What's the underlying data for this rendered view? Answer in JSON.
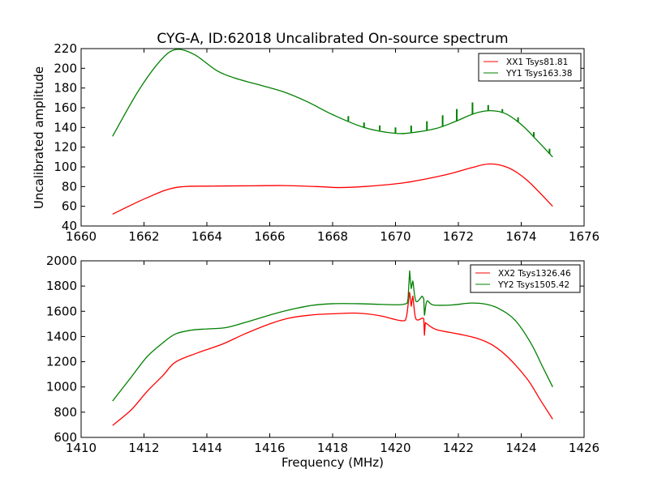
{
  "chart_data": [
    {
      "type": "line",
      "title": "CYG-A, ID:62018 Uncalibrated On-source spectrum",
      "xlabel": "",
      "ylabel": "Uncalibrated amplitude",
      "xlim": [
        1660,
        1676
      ],
      "ylim": [
        40,
        220
      ],
      "xticks": [
        "1660",
        "1662",
        "1664",
        "1666",
        "1668",
        "1670",
        "1672",
        "1674",
        "1676"
      ],
      "yticks": [
        "40",
        "60",
        "80",
        "100",
        "120",
        "140",
        "160",
        "180",
        "200",
        "220"
      ],
      "grid": false,
      "legend_position": "top-right",
      "series": [
        {
          "name": "XX1 Tsys81.81",
          "color": "#ff0000",
          "x": [
            1661.0,
            1662.05,
            1663.0,
            1664.2,
            1665.5,
            1666.45,
            1667.5,
            1668.2,
            1669.0,
            1670.3,
            1671.6,
            1672.4,
            1673.0,
            1673.6,
            1674.2,
            1675.0
          ],
          "y": [
            52,
            68,
            79,
            80.5,
            80.8,
            81,
            80,
            79,
            80,
            84,
            92,
            99,
            103,
            99,
            86,
            60
          ]
        },
        {
          "name": "YY1 Tsys163.38",
          "color": "#008000",
          "x": [
            1661.0,
            1661.8,
            1662.5,
            1663.0,
            1663.6,
            1664.3,
            1664.9,
            1665.8,
            1666.45,
            1667.2,
            1668.0,
            1669.0,
            1670.0,
            1670.6,
            1671.3,
            1671.9,
            1672.5,
            1673.0,
            1673.5,
            1674.0,
            1674.5,
            1675.0
          ],
          "y": [
            131,
            176,
            207,
            219,
            214,
            198,
            190,
            182,
            176,
            166,
            153,
            140,
            134,
            135,
            139,
            146,
            154,
            157,
            154,
            143,
            127,
            110
          ],
          "spikes_x": [
            1668.5,
            1669.0,
            1669.5,
            1670.0,
            1670.5,
            1671.0,
            1671.5,
            1671.95,
            1672.45,
            1672.95,
            1673.4,
            1673.9,
            1674.4,
            1674.9
          ],
          "spikes_height": [
            5,
            5,
            5,
            6,
            7,
            9,
            11,
            12,
            12,
            6,
            4,
            5,
            5,
            5
          ]
        }
      ]
    },
    {
      "type": "line",
      "title": "",
      "xlabel": "Frequency (MHz)",
      "ylabel": "",
      "xlim": [
        1410,
        1426
      ],
      "ylim": [
        600,
        2000
      ],
      "xticks": [
        "1410",
        "1412",
        "1414",
        "1416",
        "1418",
        "1420",
        "1422",
        "1424",
        "1426"
      ],
      "yticks": [
        "600",
        "800",
        "1000",
        "1200",
        "1400",
        "1600",
        "1800",
        "2000"
      ],
      "grid": false,
      "legend_position": "top-right",
      "series": [
        {
          "name": "XX2 Tsys1326.46",
          "color": "#ff0000",
          "x": [
            1411.0,
            1411.6,
            1412.1,
            1412.6,
            1413.0,
            1413.7,
            1414.5,
            1415.2,
            1416.0,
            1416.6,
            1417.3,
            1418.0,
            1418.8,
            1419.5,
            1420.2,
            1420.35,
            1420.45,
            1420.5,
            1420.55,
            1420.65,
            1420.9,
            1420.92,
            1420.95,
            1421.0,
            1421.3,
            1422.0,
            1422.6,
            1423.1,
            1423.6,
            1424.2,
            1424.6,
            1425.0
          ],
          "y": [
            695,
            820,
            965,
            1090,
            1197,
            1270,
            1340,
            1420,
            1500,
            1545,
            1570,
            1580,
            1585,
            1565,
            1525,
            1560,
            1750,
            1640,
            1720,
            1540,
            1540,
            1410,
            1510,
            1500,
            1455,
            1420,
            1385,
            1330,
            1230,
            1060,
            900,
            745
          ]
        },
        {
          "name": "YY2 Tsys1505.42",
          "color": "#008000",
          "x": [
            1411.0,
            1411.6,
            1412.1,
            1412.6,
            1413.0,
            1413.5,
            1414.0,
            1414.6,
            1415.2,
            1416.0,
            1416.6,
            1417.3,
            1418.0,
            1418.8,
            1419.5,
            1420.25,
            1420.4,
            1420.45,
            1420.5,
            1420.55,
            1420.65,
            1420.85,
            1420.9,
            1420.92,
            1421.0,
            1421.2,
            1421.8,
            1422.4,
            1422.9,
            1423.3,
            1423.8,
            1424.3,
            1424.7,
            1425.0
          ],
          "y": [
            888,
            1080,
            1240,
            1350,
            1420,
            1450,
            1460,
            1470,
            1510,
            1570,
            1610,
            1645,
            1660,
            1660,
            1655,
            1655,
            1700,
            1920,
            1780,
            1840,
            1680,
            1720,
            1700,
            1570,
            1680,
            1650,
            1650,
            1665,
            1655,
            1620,
            1530,
            1350,
            1150,
            1000
          ]
        }
      ]
    }
  ]
}
